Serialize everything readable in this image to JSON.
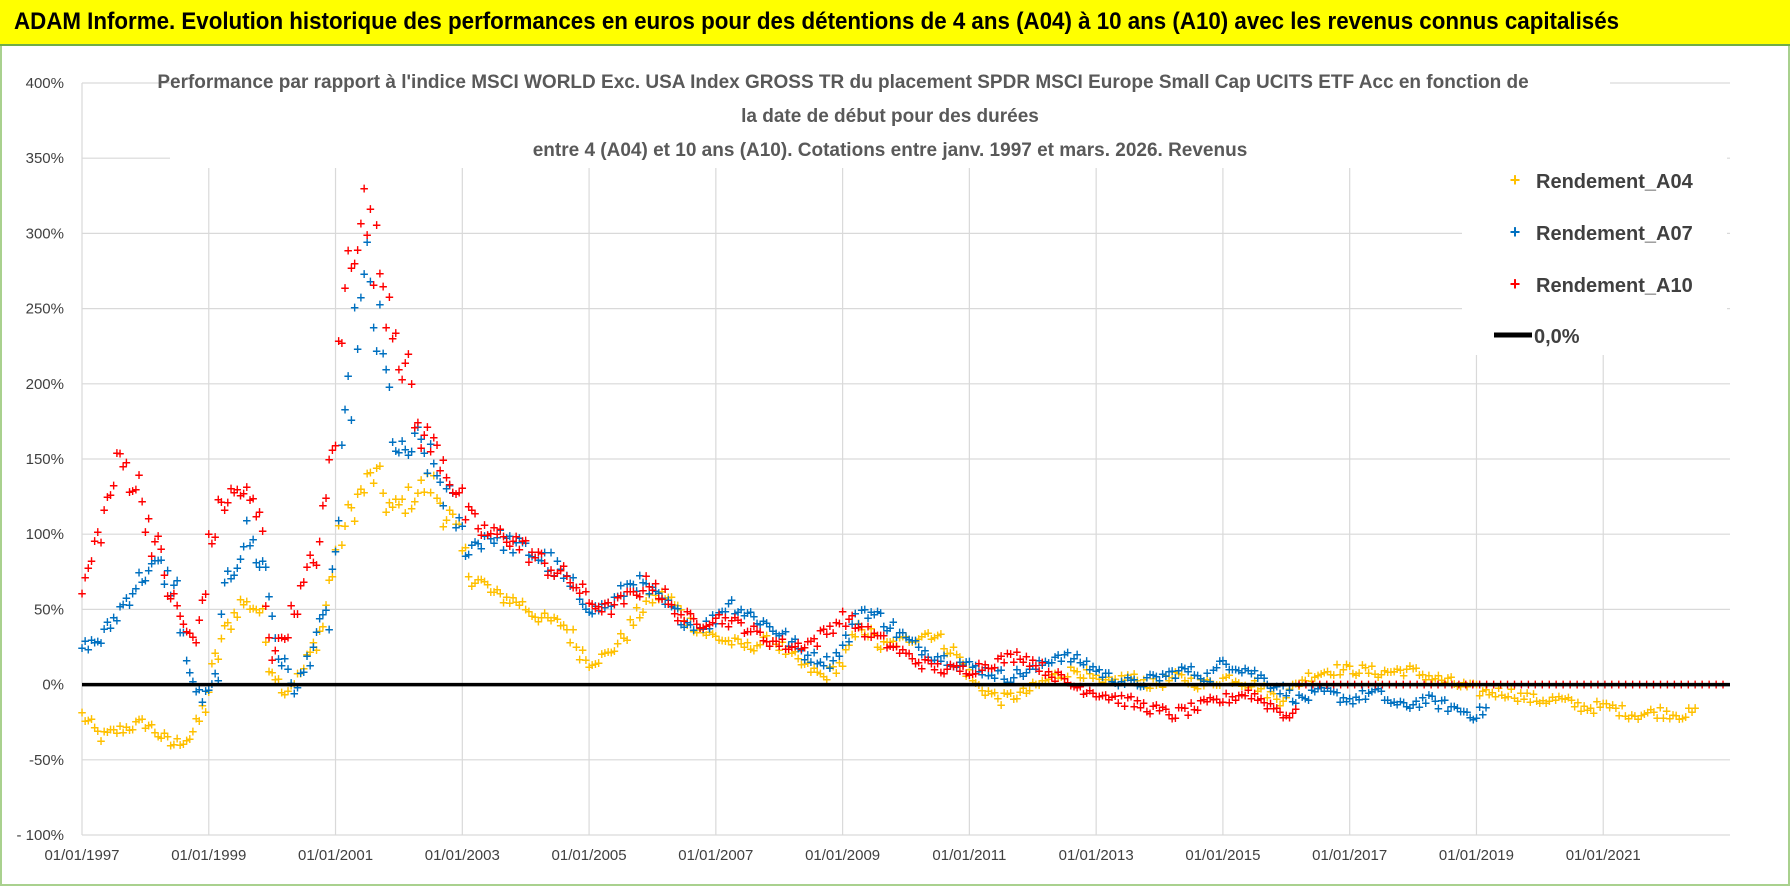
{
  "banner": {
    "text": "ADAM Informe. Evolution historique des performances en euros pour des détentions de 4 ans (A04) à 10 ans (A10) avec les revenus connus capitalisés"
  },
  "colors": {
    "banner_bg": "#ffff00",
    "a04": "#ffc000",
    "a07": "#0070c0",
    "a10": "#ff0000",
    "zero": "#000000"
  },
  "chart_data": {
    "type": "scatter",
    "title_lines": [
      "Performance par rapport à l'indice MSCI WORLD Exc. USA Index GROSS TR  du placement SPDR MSCI Europe Small Cap UCITS ETF Acc en fonction de",
      "la date de début pour des durées",
      "entre 4 (A04) et 10 ans (A10). Cotations entre janv. 1997 et mars. 2026. Revenus"
    ],
    "xlabel": "",
    "ylabel": "",
    "xlim": [
      1997.0,
      2023.0
    ],
    "ylim": [
      -100,
      400
    ],
    "y_ticks": [
      400,
      350,
      300,
      250,
      200,
      150,
      100,
      50,
      0,
      -50,
      -100
    ],
    "y_tick_labels": [
      "400%",
      "350%",
      "300%",
      "250%",
      "200%",
      "150%",
      "100%",
      "50%",
      "0%",
      "-50%",
      "- 100%"
    ],
    "x_ticks": [
      1997,
      1999,
      2001,
      2003,
      2005,
      2007,
      2009,
      2011,
      2013,
      2015,
      2017,
      2019,
      2021
    ],
    "x_tick_labels": [
      "01/01/1997",
      "01/01/1999",
      "01/01/2001",
      "01/01/2003",
      "01/01/2005",
      "01/01/2007",
      "01/01/2009",
      "01/01/2011",
      "01/01/2013",
      "01/01/2015",
      "01/01/2017",
      "01/01/2019",
      "01/01/2021"
    ],
    "grid": true,
    "legend": "top-right",
    "series": [
      {
        "name": "Rendement_A04",
        "marker": "+",
        "x": [
          1997.0,
          1997.3,
          1997.6,
          1998.0,
          1998.4,
          1998.7,
          1998.9,
          1999.2,
          1999.5,
          1999.8,
          2000.0,
          2000.2,
          2000.5,
          2000.8,
          2001.0,
          2001.3,
          2001.6,
          2001.9,
          2002.2,
          2002.5,
          2002.8,
          2003.1,
          2003.5,
          2003.9,
          2004.2,
          2004.6,
          2005.0,
          2005.3,
          2005.6,
          2005.9,
          2006.2,
          2006.5,
          2006.8,
          2007.1,
          2007.5,
          2007.9,
          2008.3,
          2008.7,
          2009.0,
          2009.3,
          2009.6,
          2010.0,
          2010.4,
          2010.8,
          2011.1,
          2011.5,
          2011.9,
          2012.3,
          2012.7,
          2013.1,
          2013.5,
          2013.9,
          2014.3,
          2014.7,
          2015.1,
          2015.5,
          2015.9,
          2016.3,
          2016.7,
          2017.1,
          2017.5,
          2017.9,
          2018.3,
          2018.7,
          2019.1,
          2019.5,
          2019.9,
          2020.3,
          2020.7,
          2021.1,
          2021.5,
          2021.9,
          2022.3,
          2022.5
        ],
        "values": [
          -20,
          -35,
          -30,
          -25,
          -40,
          -35,
          -20,
          30,
          55,
          50,
          10,
          -5,
          10,
          40,
          90,
          120,
          140,
          115,
          125,
          135,
          110,
          75,
          60,
          55,
          45,
          40,
          15,
          20,
          35,
          55,
          60,
          45,
          35,
          30,
          25,
          30,
          15,
          5,
          15,
          40,
          25,
          30,
          35,
          20,
          0,
          -10,
          -5,
          5,
          10,
          0,
          5,
          0,
          5,
          0,
          5,
          0,
          -10,
          5,
          10,
          10,
          8,
          10,
          5,
          0,
          -5,
          -5,
          -10,
          -10,
          -15,
          -15,
          -20,
          -18,
          -20,
          -18
        ]
      },
      {
        "name": "Rendement_A07",
        "marker": "+",
        "x": [
          1997.0,
          1997.3,
          1997.6,
          1997.9,
          1998.2,
          1998.5,
          1998.7,
          1998.9,
          1999.1,
          1999.3,
          1999.6,
          1999.9,
          2000.1,
          2000.4,
          2000.7,
          2000.9,
          2001.1,
          2001.3,
          2001.5,
          2001.8,
          2002.0,
          2002.3,
          2002.6,
          2002.9,
          2003.1,
          2003.4,
          2003.7,
          2004.0,
          2004.4,
          2004.8,
          2005.1,
          2005.4,
          2005.7,
          2006.0,
          2006.3,
          2006.6,
          2006.9,
          2007.2,
          2007.6,
          2008.0,
          2008.4,
          2008.8,
          2009.0,
          2009.3,
          2009.6,
          2010.0,
          2010.4,
          2010.8,
          2011.2,
          2011.6,
          2012.0,
          2012.4,
          2012.8,
          2013.2,
          2013.6,
          2014.0,
          2014.4,
          2014.8,
          2015.0,
          2015.4,
          2015.8,
          2016.2,
          2016.6,
          2017.0,
          2017.4,
          2017.8,
          2018.2,
          2018.6,
          2019.0,
          2019.2
        ],
        "values": [
          25,
          30,
          50,
          70,
          80,
          60,
          5,
          -10,
          0,
          70,
          100,
          75,
          20,
          -5,
          35,
          50,
          130,
          230,
          270,
          200,
          150,
          160,
          140,
          110,
          90,
          100,
          95,
          90,
          80,
          60,
          50,
          55,
          70,
          60,
          50,
          40,
          40,
          55,
          45,
          35,
          20,
          15,
          25,
          50,
          45,
          30,
          20,
          15,
          10,
          5,
          10,
          20,
          15,
          5,
          0,
          5,
          10,
          5,
          15,
          10,
          0,
          -10,
          -5,
          -10,
          -5,
          -15,
          -10,
          -15,
          -20,
          -15
        ]
      },
      {
        "name": "Rendement_A10",
        "marker": "+",
        "x": [
          1997.0,
          1997.2,
          1997.4,
          1997.6,
          1997.9,
          1998.1,
          1998.4,
          1998.6,
          1998.8,
          1999.0,
          1999.2,
          1999.5,
          1999.8,
          2000.0,
          2000.2,
          2000.5,
          2000.8,
          2001.0,
          2001.2,
          2001.4,
          2001.6,
          2001.9,
          2002.1,
          2002.3,
          2002.5,
          2002.7,
          2002.9,
          2003.1,
          2003.4,
          2003.7,
          2004.0,
          2004.3,
          2004.7,
          2005.0,
          2005.3,
          2005.7,
          2006.0,
          2006.3,
          2006.7,
          2007.0,
          2007.4,
          2007.8,
          2008.2,
          2008.6,
          2009.0,
          2009.4,
          2009.8,
          2010.2,
          2010.6,
          2011.0,
          2011.4,
          2011.8,
          2012.2,
          2012.6,
          2013.0,
          2013.4,
          2013.8,
          2014.2,
          2014.6,
          2015.0,
          2015.4,
          2015.8,
          2016.0,
          2016.2
        ],
        "values": [
          60,
          90,
          120,
          150,
          130,
          100,
          60,
          40,
          25,
          90,
          120,
          130,
          110,
          20,
          35,
          65,
          100,
          180,
          280,
          320,
          290,
          250,
          210,
          170,
          160,
          150,
          130,
          110,
          100,
          100,
          90,
          80,
          70,
          55,
          50,
          60,
          70,
          50,
          40,
          45,
          40,
          30,
          25,
          30,
          45,
          35,
          25,
          15,
          10,
          10,
          15,
          20,
          10,
          0,
          -5,
          -10,
          -15,
          -20,
          -15,
          -10,
          -5,
          -15,
          -20,
          -20
        ]
      },
      {
        "name": "Rendement_A10",
        "marker": "+",
        "role": "flat tail on zero line",
        "x": [
          2016.2,
          2023.0
        ],
        "values": [
          0,
          0
        ]
      }
    ],
    "reference_line": {
      "name": "0,0%",
      "value": 0
    },
    "legend_entries": [
      "Rendement_A04",
      "Rendement_A07",
      "Rendement_A10",
      "0,0%"
    ]
  }
}
